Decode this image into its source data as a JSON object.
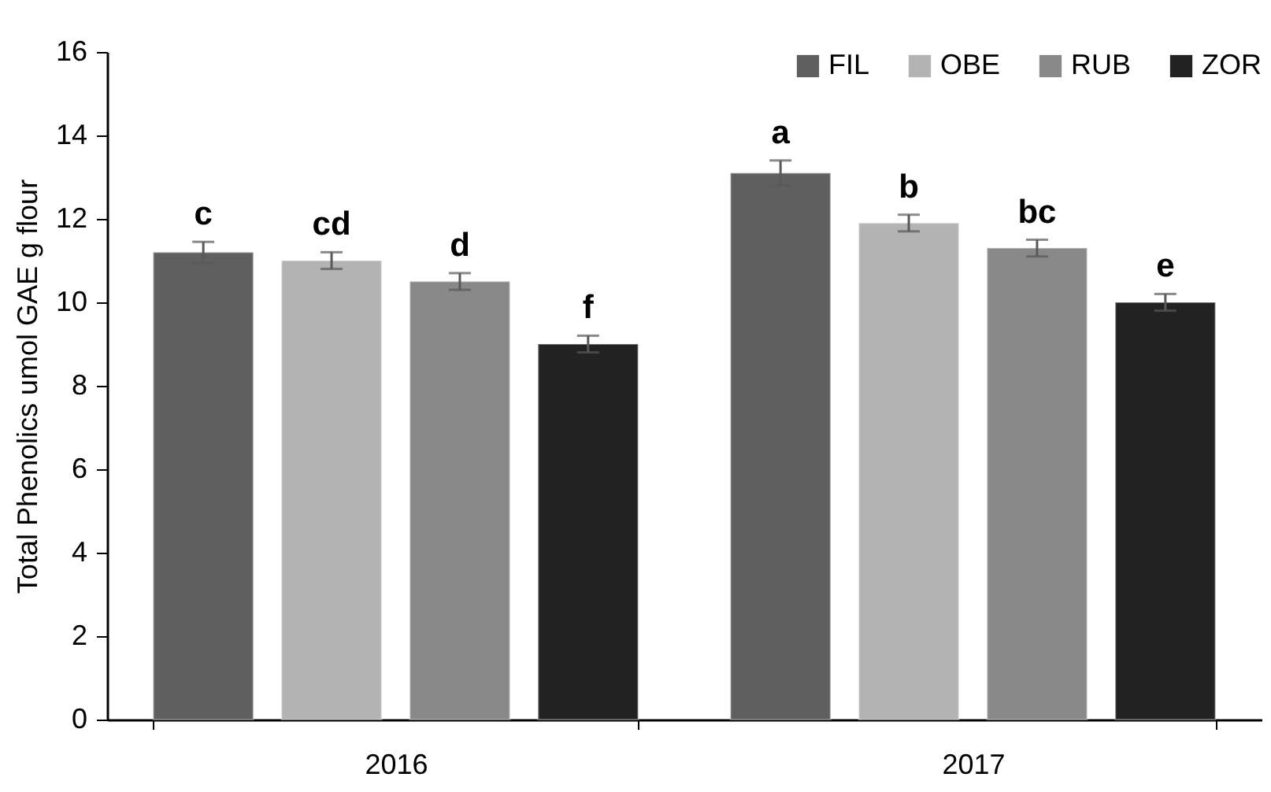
{
  "chart_data": {
    "type": "bar",
    "categories": [
      "2016",
      "2017"
    ],
    "series": [
      {
        "name": "FIL",
        "color": "#5f5f5f",
        "values": [
          11.2,
          13.1
        ],
        "errors": [
          0.25,
          0.3
        ],
        "value_labels": [
          "c",
          "a"
        ]
      },
      {
        "name": "OBE",
        "color": "#b3b3b3",
        "values": [
          11.0,
          11.9
        ],
        "errors": [
          0.2,
          0.2
        ],
        "value_labels": [
          "cd",
          "b"
        ]
      },
      {
        "name": "RUB",
        "color": "#898989",
        "values": [
          10.5,
          11.3
        ],
        "errors": [
          0.2,
          0.2
        ],
        "value_labels": [
          "d",
          "bc"
        ]
      },
      {
        "name": "ZOR",
        "color": "#222222",
        "values": [
          9.0,
          10.0
        ],
        "errors": [
          0.2,
          0.2
        ],
        "value_labels": [
          "f",
          "e"
        ]
      }
    ],
    "ylabel": "Total Phenolics umol GAE g flour",
    "ylim": [
      0,
      16
    ],
    "yticks": [
      0,
      2,
      4,
      6,
      8,
      10,
      12,
      14,
      16
    ],
    "grid": false,
    "legend": "top right"
  }
}
